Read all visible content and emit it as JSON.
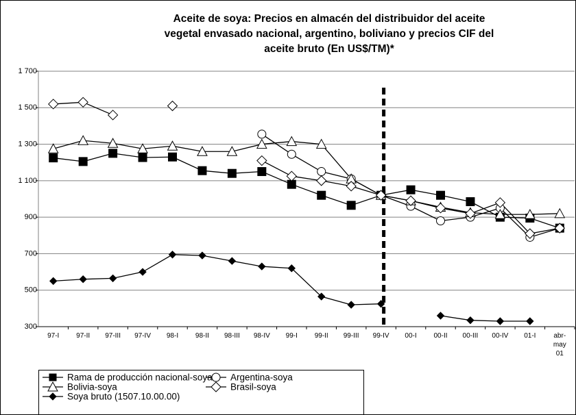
{
  "chart_data": {
    "type": "line",
    "title": [
      "Aceite de soya: Precios en almacén del distribuidor del aceite",
      "vegetal envasado nacional, argentino, boliviano  y precios CIF del",
      "aceite bruto (En US$/TM)*"
    ],
    "categories": [
      "97-I",
      "97-II",
      "97-III",
      "97-IV",
      "98-I",
      "98-II",
      "98-III",
      "98-IV",
      "99-I",
      "99-II",
      "99-III",
      "99-IV",
      "00-I",
      "00-II",
      "00-III",
      "00-IV",
      "01-I",
      "abr-may 01"
    ],
    "ylim": [
      300,
      1700
    ],
    "yticks": [
      300,
      500,
      700,
      900,
      {
        "value": 1100,
        "label": "1 100"
      },
      {
        "value": 1300,
        "label": "1 300"
      },
      {
        "value": 1500,
        "label": "1 500"
      },
      {
        "value": 1700,
        "label": "1 700"
      }
    ],
    "grid": true,
    "legend": "bottom",
    "series": [
      {
        "name": "Rama de producción nacional-soya",
        "color": "#000000",
        "marker": "square",
        "values": [
          1225,
          1205,
          1250,
          1227,
          1230,
          1155,
          1140,
          1150,
          1080,
          1020,
          965,
          1020,
          1050,
          1020,
          985,
          900,
          895,
          840
        ]
      },
      {
        "name": "Argentina-soya",
        "color": "#000000",
        "marker": "circle",
        "values": [
          null,
          null,
          null,
          null,
          null,
          null,
          null,
          1355,
          1245,
          1150,
          1110,
          1020,
          960,
          880,
          900,
          950,
          790,
          840
        ]
      },
      {
        "name": "Bolivia-soya",
        "color": "#000000",
        "marker": "triangle",
        "values": [
          1275,
          1320,
          1305,
          1275,
          1290,
          1260,
          1260,
          1300,
          1315,
          1300,
          1110,
          1020,
          990,
          955,
          925,
          915,
          915,
          920
        ]
      },
      {
        "name": "Brasil-soya",
        "color": "#000000",
        "marker": "diamond",
        "values": [
          1520,
          1530,
          1460,
          null,
          1510,
          null,
          null,
          1210,
          1125,
          1100,
          1070,
          1020,
          990,
          950,
          920,
          980,
          810,
          840
        ]
      },
      {
        "name": "Soya bruto (1507.10.00.00)",
        "color": "#000000",
        "marker": "filled-diamond",
        "values": [
          550,
          560,
          565,
          600,
          695,
          690,
          660,
          630,
          620,
          465,
          420,
          425,
          null,
          360,
          335,
          330,
          330,
          null
        ]
      }
    ]
  }
}
